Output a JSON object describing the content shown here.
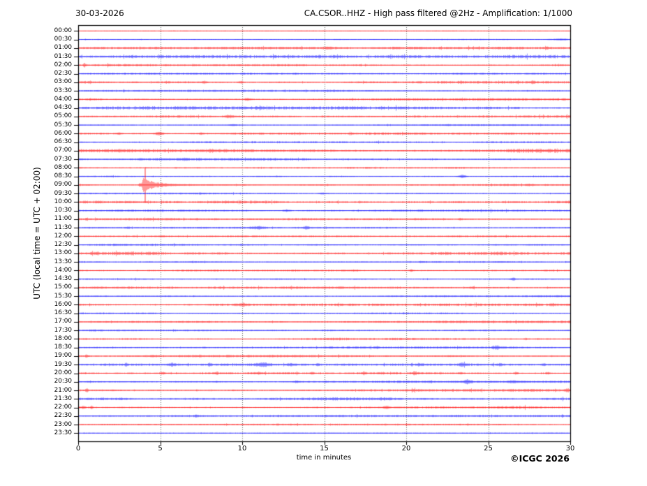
{
  "header": {
    "date": "30-03-2026",
    "title": "CA.CSOR..HHZ - High pass filtered @2Hz - Amplification: 1/1000"
  },
  "axes": {
    "y_label": "UTC (local time = UTC + 02:00)",
    "x_label": "time in minutes",
    "x_ticks": [
      0,
      5,
      10,
      15,
      20,
      25,
      30
    ],
    "x_range_minutes": [
      0,
      30
    ],
    "grid_minutes": [
      5,
      10,
      15,
      20,
      25
    ]
  },
  "footer": {
    "copyright": "©ICGC 2026"
  },
  "chart_data": {
    "type": "helicorder",
    "station": "CA.CSOR..HHZ",
    "filter": "High pass filtered @2Hz",
    "amplification": "1/1000",
    "date": "30-03-2026",
    "minutes_per_row": 30,
    "row_interval": "00:30",
    "trace_colors": {
      "hour_rows": "#ff0000",
      "half_hour_rows": "#0000ff"
    },
    "grid_color": "#555555",
    "frame_color": "#000000",
    "main_event": {
      "row": "09:00",
      "onset_minute": 3.7,
      "peak_minute": 4.0,
      "coda_end_minute": 9,
      "color": "#ff0000",
      "description": "large impulsive seismic event with decaying coda"
    },
    "rows": [
      {
        "t": "00:00",
        "c": "red",
        "n": 0.35,
        "e": []
      },
      {
        "t": "00:30",
        "c": "blue",
        "n": 0.7,
        "e": [
          {
            "m": 29.4,
            "a": 1.1,
            "w": 0.5
          }
        ]
      },
      {
        "t": "01:00",
        "c": "red",
        "n": 1.25,
        "e": [
          {
            "m": 15.2,
            "a": 1.4,
            "w": 0.25
          },
          {
            "m": 28.5,
            "a": 1.8,
            "w": 0.12
          }
        ]
      },
      {
        "t": "01:30",
        "c": "blue",
        "n": 1.55,
        "e": []
      },
      {
        "t": "02:00",
        "c": "red",
        "n": 1.15,
        "e": [
          {
            "m": 0.35,
            "a": 3.2,
            "w": 0.08
          }
        ]
      },
      {
        "t": "02:30",
        "c": "blue",
        "n": 1.0,
        "e": []
      },
      {
        "t": "03:00",
        "c": "red",
        "n": 1.25,
        "e": [
          {
            "m": 7.7,
            "a": 1.8,
            "w": 0.18
          },
          {
            "m": 9.9,
            "a": 1.4,
            "w": 0.18
          },
          {
            "m": 27.7,
            "a": 1.8,
            "w": 0.1
          }
        ]
      },
      {
        "t": "03:30",
        "c": "blue",
        "n": 1.0,
        "e": []
      },
      {
        "t": "04:00",
        "c": "red",
        "n": 1.3,
        "e": [
          {
            "m": 10.3,
            "a": 1.8,
            "w": 0.2
          }
        ]
      },
      {
        "t": "04:30",
        "c": "blue",
        "n": 1.65,
        "e": []
      },
      {
        "t": "05:00",
        "c": "red",
        "n": 1.15,
        "e": [
          {
            "m": 9.2,
            "a": 1.3,
            "w": 0.35
          }
        ]
      },
      {
        "t": "05:30",
        "c": "blue",
        "n": 0.95,
        "e": [
          {
            "m": 9.4,
            "a": 1.4,
            "w": 0.25
          }
        ]
      },
      {
        "t": "06:00",
        "c": "red",
        "n": 1.25,
        "e": [
          {
            "m": 2.5,
            "a": 1.3,
            "w": 0.15
          },
          {
            "m": 4.9,
            "a": 2.3,
            "w": 0.3
          },
          {
            "m": 7.5,
            "a": 1.3,
            "w": 0.15
          }
        ]
      },
      {
        "t": "06:30",
        "c": "blue",
        "n": 0.9,
        "e": []
      },
      {
        "t": "07:00",
        "c": "red",
        "n": 1.9,
        "e": []
      },
      {
        "t": "07:30",
        "c": "blue",
        "n": 1.25,
        "e": [
          {
            "m": 6.5,
            "a": 1.3,
            "w": 0.15
          }
        ]
      },
      {
        "t": "08:00",
        "c": "red",
        "n": 1.15,
        "e": []
      },
      {
        "t": "08:30",
        "c": "blue",
        "n": 0.95,
        "e": [
          {
            "m": 23.4,
            "a": 2.0,
            "w": 0.25
          }
        ]
      },
      {
        "t": "09:00",
        "c": "red",
        "n": 1.15,
        "e": [
          {
            "m": 3.75,
            "a": 3.0,
            "w": 0.08
          },
          {
            "m": 4.0,
            "a": 12,
            "w": 0.12,
            "d": 0.38,
            "ca": 2.8,
            "cd": 2.2
          },
          {
            "m": 4.07,
            "a": 16,
            "w": 0.04
          },
          {
            "m": 27.5,
            "a": 1.6,
            "w": 0.08
          }
        ]
      },
      {
        "t": "09:30",
        "c": "blue",
        "n": 0.9,
        "e": [
          {
            "m": 14.9,
            "a": 1.2,
            "w": 0.25
          }
        ]
      },
      {
        "t": "10:00",
        "c": "red",
        "n": 2.0,
        "e": []
      },
      {
        "t": "10:30",
        "c": "blue",
        "n": 1.05,
        "e": [
          {
            "m": 12.7,
            "a": 1.5,
            "w": 0.2
          }
        ]
      },
      {
        "t": "11:00",
        "c": "red",
        "n": 1.25,
        "e": [
          {
            "m": 0.5,
            "a": 2.0,
            "w": 0.08
          },
          {
            "m": 23.3,
            "a": 1.6,
            "w": 0.12
          }
        ]
      },
      {
        "t": "11:30",
        "c": "blue",
        "n": 1.05,
        "e": [
          {
            "m": 3.0,
            "a": 1.3,
            "w": 0.15
          },
          {
            "m": 11.0,
            "a": 2.0,
            "w": 0.45
          },
          {
            "m": 13.9,
            "a": 2.0,
            "w": 0.2
          }
        ]
      },
      {
        "t": "12:00",
        "c": "red",
        "n": 0.9,
        "e": []
      },
      {
        "t": "12:30",
        "c": "blue",
        "n": 1.05,
        "e": []
      },
      {
        "t": "13:00",
        "c": "red",
        "n": 1.75,
        "e": []
      },
      {
        "t": "13:30",
        "c": "blue",
        "n": 1.05,
        "e": []
      },
      {
        "t": "14:00",
        "c": "red",
        "n": 1.15,
        "e": [
          {
            "m": 20.3,
            "a": 1.4,
            "w": 0.12
          }
        ]
      },
      {
        "t": "14:30",
        "c": "blue",
        "n": 0.95,
        "e": [
          {
            "m": 26.5,
            "a": 1.8,
            "w": 0.15
          }
        ]
      },
      {
        "t": "15:00",
        "c": "red",
        "n": 1.15,
        "e": [
          {
            "m": 24.0,
            "a": 1.3,
            "w": 0.15
          }
        ]
      },
      {
        "t": "15:30",
        "c": "blue",
        "n": 1.0,
        "e": []
      },
      {
        "t": "16:00",
        "c": "red",
        "n": 1.2,
        "e": [
          {
            "m": 10.0,
            "a": 2.0,
            "w": 0.4
          },
          {
            "m": 28.9,
            "a": 1.5,
            "w": 0.2
          }
        ]
      },
      {
        "t": "16:30",
        "c": "blue",
        "n": 0.95,
        "e": []
      },
      {
        "t": "17:00",
        "c": "red",
        "n": 1.2,
        "e": []
      },
      {
        "t": "17:30",
        "c": "blue",
        "n": 1.05,
        "e": []
      },
      {
        "t": "18:00",
        "c": "red",
        "n": 1.2,
        "e": []
      },
      {
        "t": "18:30",
        "c": "blue",
        "n": 1.05,
        "e": [
          {
            "m": 25.5,
            "a": 2.0,
            "w": 0.25
          }
        ]
      },
      {
        "t": "19:00",
        "c": "red",
        "n": 1.2,
        "e": [
          {
            "m": 0.5,
            "a": 2.3,
            "w": 0.08
          }
        ]
      },
      {
        "t": "19:30",
        "c": "blue",
        "n": 1.15,
        "e": [
          {
            "m": 2.9,
            "a": 1.5,
            "w": 0.12
          },
          {
            "m": 5.7,
            "a": 1.5,
            "w": 0.18
          },
          {
            "m": 8.0,
            "a": 1.4,
            "w": 0.12
          },
          {
            "m": 11.2,
            "a": 2.0,
            "w": 0.45
          },
          {
            "m": 12.9,
            "a": 1.7,
            "w": 0.18
          },
          {
            "m": 14.6,
            "a": 2.0,
            "w": 0.12
          },
          {
            "m": 20.8,
            "a": 1.5,
            "w": 0.18
          },
          {
            "m": 23.4,
            "a": 2.2,
            "w": 0.2
          },
          {
            "m": 25.7,
            "a": 1.7,
            "w": 0.18
          },
          {
            "m": 28.4,
            "a": 1.5,
            "w": 0.12
          }
        ]
      },
      {
        "t": "20:00",
        "c": "red",
        "n": 1.25,
        "e": [
          {
            "m": 5.1,
            "a": 1.7,
            "w": 0.18
          },
          {
            "m": 8.4,
            "a": 1.5,
            "w": 0.12
          },
          {
            "m": 11.0,
            "a": 1.5,
            "w": 0.12
          },
          {
            "m": 14.3,
            "a": 1.5,
            "w": 0.12
          },
          {
            "m": 17.4,
            "a": 1.7,
            "w": 0.12
          },
          {
            "m": 20.5,
            "a": 1.7,
            "w": 0.18
          },
          {
            "m": 23.3,
            "a": 1.5,
            "w": 0.12
          },
          {
            "m": 26.7,
            "a": 1.9,
            "w": 0.12
          },
          {
            "m": 28.6,
            "a": 1.5,
            "w": 0.12
          }
        ]
      },
      {
        "t": "20:30",
        "c": "blue",
        "n": 1.15,
        "e": [
          {
            "m": 13.3,
            "a": 1.5,
            "w": 0.18
          },
          {
            "m": 23.7,
            "a": 2.6,
            "w": 0.25
          },
          {
            "m": 26.5,
            "a": 1.4,
            "w": 0.25
          }
        ]
      },
      {
        "t": "21:00",
        "c": "red",
        "n": 1.35,
        "e": [
          {
            "m": 0.5,
            "a": 3.2,
            "w": 0.08
          },
          {
            "m": 29.8,
            "a": 1.8,
            "w": 0.12
          }
        ]
      },
      {
        "t": "21:30",
        "c": "blue",
        "n": 1.55,
        "e": []
      },
      {
        "t": "22:00",
        "c": "red",
        "n": 1.35,
        "e": [
          {
            "m": 0.3,
            "a": 2.3,
            "w": 0.1
          },
          {
            "m": 0.8,
            "a": 2.3,
            "w": 0.08
          },
          {
            "m": 18.8,
            "a": 1.6,
            "w": 0.15
          }
        ]
      },
      {
        "t": "22:30",
        "c": "blue",
        "n": 1.05,
        "e": [
          {
            "m": 7.2,
            "a": 1.3,
            "w": 0.15
          }
        ]
      },
      {
        "t": "23:00",
        "c": "red",
        "n": 0.9,
        "e": []
      },
      {
        "t": "23:30",
        "c": "blue",
        "n": 0.5,
        "e": []
      }
    ]
  }
}
